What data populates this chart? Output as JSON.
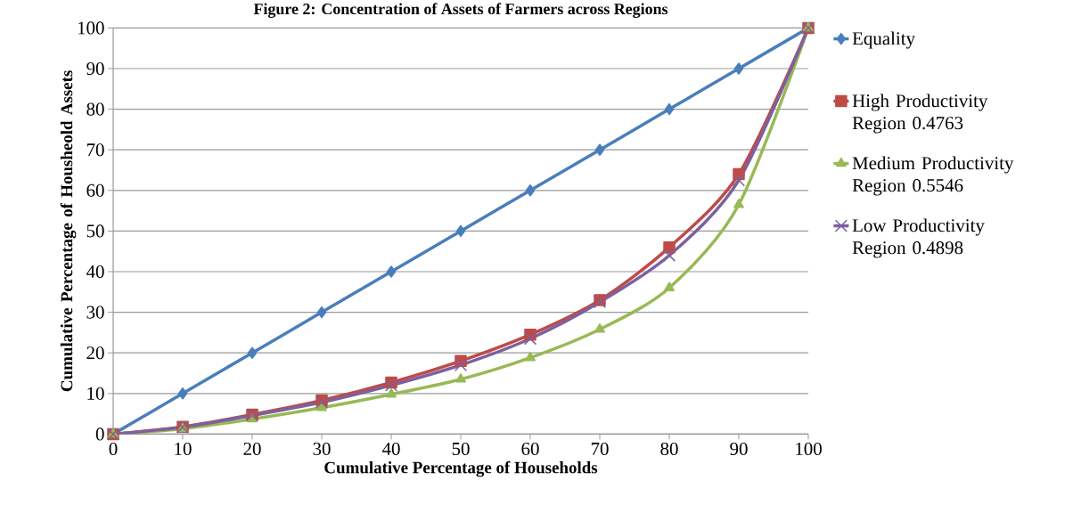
{
  "chart_data": {
    "type": "line",
    "title": "Figure 2: Concentration of Assets of Farmers across Regions",
    "xlabel": "Cumulative Percentage of Households",
    "ylabel": "Cumulative Percentage of Housheold Assets",
    "x": [
      0,
      10,
      20,
      30,
      40,
      50,
      60,
      70,
      80,
      90,
      100
    ],
    "series": [
      {
        "name": "Equality",
        "color": "#4a7ebb",
        "marker": "diamond",
        "values": [
          0,
          10,
          20,
          30,
          40,
          50,
          60,
          70,
          80,
          90,
          100
        ]
      },
      {
        "name": "High Productivity Region 0.4763",
        "color": "#be4b48",
        "marker": "square",
        "values": [
          0,
          1.8,
          4.8,
          8.3,
          12.7,
          18,
          24.5,
          33,
          46,
          64,
          100
        ]
      },
      {
        "name": "Medium Productivity Region 0.5546",
        "color": "#98b954",
        "marker": "triangle",
        "values": [
          0,
          1.3,
          3.7,
          6.5,
          9.8,
          13.5,
          18.8,
          25.8,
          36,
          56.5,
          100
        ]
      },
      {
        "name": "Low Productivity Region 0.4898",
        "color": "#7d60a0",
        "marker": "cross",
        "values": [
          0,
          1.7,
          4.6,
          7.8,
          12,
          17,
          23.5,
          32.5,
          44,
          62.5,
          100
        ]
      }
    ],
    "xlim": [
      0,
      100
    ],
    "ylim": [
      0,
      100
    ],
    "xticks": [
      0,
      10,
      20,
      30,
      40,
      50,
      60,
      70,
      80,
      90,
      100
    ],
    "yticks": [
      0,
      10,
      20,
      30,
      40,
      50,
      60,
      70,
      80,
      90,
      100
    ],
    "grid": "y",
    "legend": "right",
    "line_style": "solid"
  }
}
